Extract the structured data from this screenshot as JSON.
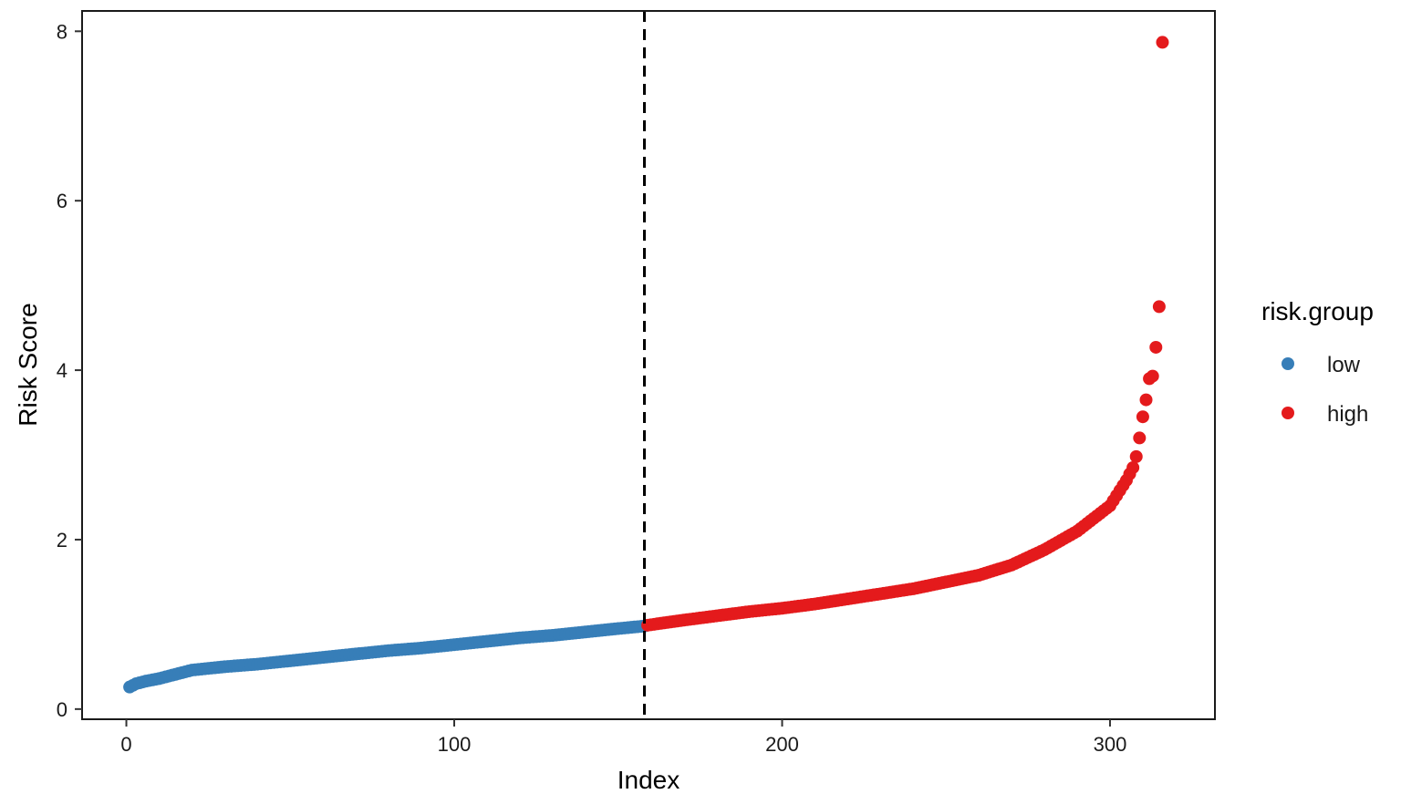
{
  "chart_data": {
    "type": "scatter",
    "xlabel": "Index",
    "ylabel": "Risk Score",
    "xlim": [
      -13.5,
      332
    ],
    "ylim": [
      -0.12,
      8.24
    ],
    "x_ticks": [
      0,
      100,
      200,
      300
    ],
    "y_ticks": [
      0,
      2,
      4,
      6,
      8
    ],
    "grid": false,
    "cutoff_line": {
      "x": 158,
      "style": "dashed",
      "color": "#000000"
    },
    "legend": {
      "title": "risk.group",
      "placement": "right",
      "entries": [
        {
          "label": "low",
          "color": "#377EB8"
        },
        {
          "label": "high",
          "color": "#E41A1C"
        }
      ]
    },
    "series": [
      {
        "name": "low",
        "color": "#377EB8",
        "x_range": [
          1,
          158
        ],
        "anchors": [
          [
            1,
            0.26
          ],
          [
            3,
            0.3
          ],
          [
            6,
            0.33
          ],
          [
            10,
            0.36
          ],
          [
            15,
            0.41
          ],
          [
            20,
            0.46
          ],
          [
            30,
            0.5
          ],
          [
            40,
            0.53
          ],
          [
            50,
            0.57
          ],
          [
            60,
            0.61
          ],
          [
            70,
            0.65
          ],
          [
            80,
            0.69
          ],
          [
            90,
            0.72
          ],
          [
            100,
            0.76
          ],
          [
            110,
            0.8
          ],
          [
            120,
            0.84
          ],
          [
            130,
            0.87
          ],
          [
            140,
            0.91
          ],
          [
            150,
            0.95
          ],
          [
            158,
            0.98
          ]
        ]
      },
      {
        "name": "high",
        "color": "#E41A1C",
        "x_range": [
          159,
          316
        ],
        "anchors": [
          [
            159,
            0.99
          ],
          [
            170,
            1.05
          ],
          [
            180,
            1.1
          ],
          [
            190,
            1.15
          ],
          [
            200,
            1.19
          ],
          [
            210,
            1.24
          ],
          [
            220,
            1.3
          ],
          [
            230,
            1.36
          ],
          [
            240,
            1.42
          ],
          [
            250,
            1.5
          ],
          [
            260,
            1.58
          ],
          [
            270,
            1.7
          ],
          [
            280,
            1.88
          ],
          [
            290,
            2.1
          ],
          [
            300,
            2.4
          ],
          [
            305,
            2.7
          ],
          [
            307,
            2.85
          ],
          [
            308,
            2.98
          ],
          [
            309,
            3.2
          ],
          [
            310,
            3.45
          ],
          [
            311,
            3.65
          ],
          [
            312,
            3.9
          ],
          [
            313,
            3.93
          ],
          [
            314,
            4.27
          ],
          [
            315,
            4.75
          ],
          [
            316,
            7.87
          ]
        ]
      }
    ]
  }
}
